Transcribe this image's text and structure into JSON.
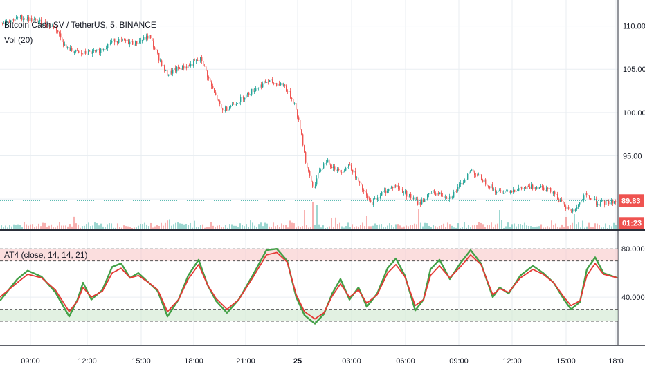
{
  "chart_data": [
    {
      "type": "candlestick",
      "title": "Bitcoin Cash SV / TetherUS, 5, BINANCE",
      "volume_label": "Vol (20)",
      "ylim": [
        86.5,
        113.0
      ],
      "y_ticks": [
        "110.00",
        "105.00",
        "100.00",
        "95.00"
      ],
      "last_price_tag": "89.83",
      "countdown_tag": "01:23",
      "last_price": 89.83,
      "close_path": [
        {
          "x": 0,
          "y": 110.4
        },
        {
          "x": 30,
          "y": 111.0
        },
        {
          "x": 55,
          "y": 110.5
        },
        {
          "x": 80,
          "y": 109.8
        },
        {
          "x": 95,
          "y": 107.4
        },
        {
          "x": 115,
          "y": 106.8
        },
        {
          "x": 140,
          "y": 107.0
        },
        {
          "x": 165,
          "y": 108.4
        },
        {
          "x": 195,
          "y": 108.0
        },
        {
          "x": 215,
          "y": 108.8
        },
        {
          "x": 225,
          "y": 107.0
        },
        {
          "x": 240,
          "y": 104.4
        },
        {
          "x": 255,
          "y": 105.0
        },
        {
          "x": 275,
          "y": 105.5
        },
        {
          "x": 290,
          "y": 106.2
        },
        {
          "x": 305,
          "y": 103.0
        },
        {
          "x": 320,
          "y": 100.2
        },
        {
          "x": 345,
          "y": 101.4
        },
        {
          "x": 365,
          "y": 102.6
        },
        {
          "x": 385,
          "y": 103.6
        },
        {
          "x": 410,
          "y": 103.2
        },
        {
          "x": 425,
          "y": 101.0
        },
        {
          "x": 435,
          "y": 97.5
        },
        {
          "x": 442,
          "y": 93.8
        },
        {
          "x": 452,
          "y": 91.2
        },
        {
          "x": 460,
          "y": 93.0
        },
        {
          "x": 470,
          "y": 94.5
        },
        {
          "x": 490,
          "y": 93.1
        },
        {
          "x": 505,
          "y": 94.0
        },
        {
          "x": 520,
          "y": 91.5
        },
        {
          "x": 535,
          "y": 89.5
        },
        {
          "x": 550,
          "y": 90.6
        },
        {
          "x": 570,
          "y": 91.6
        },
        {
          "x": 590,
          "y": 90.4
        },
        {
          "x": 605,
          "y": 89.5
        },
        {
          "x": 625,
          "y": 90.8
        },
        {
          "x": 650,
          "y": 90.2
        },
        {
          "x": 665,
          "y": 91.6
        },
        {
          "x": 680,
          "y": 93.4
        },
        {
          "x": 700,
          "y": 92.0
        },
        {
          "x": 718,
          "y": 90.8
        },
        {
          "x": 735,
          "y": 91.0
        },
        {
          "x": 760,
          "y": 91.3
        },
        {
          "x": 780,
          "y": 91.5
        },
        {
          "x": 800,
          "y": 90.8
        },
        {
          "x": 815,
          "y": 89.0
        },
        {
          "x": 828,
          "y": 88.6
        },
        {
          "x": 845,
          "y": 90.4
        },
        {
          "x": 865,
          "y": 89.5
        },
        {
          "x": 892,
          "y": 89.8
        }
      ],
      "volume_spikes": [
        {
          "x": 440,
          "h": 28
        },
        {
          "x": 452,
          "h": 40
        },
        {
          "x": 458,
          "h": 36
        },
        {
          "x": 528,
          "h": 20
        },
        {
          "x": 605,
          "h": 30
        },
        {
          "x": 720,
          "h": 28
        },
        {
          "x": 818,
          "h": 18
        },
        {
          "x": 830,
          "h": 22
        }
      ]
    },
    {
      "type": "line",
      "title": "AT4 (close, 14, 14, 21)",
      "ylim": [
        0,
        95
      ],
      "y_ticks": [
        "80.0000",
        "40.0000"
      ],
      "upper_bands": [
        70,
        80
      ],
      "lower_bands": [
        20,
        30
      ],
      "x_ticks": [
        "09:00",
        "12:00",
        "15:00",
        "18:00",
        "21:00",
        "25",
        "03:00",
        "06:00",
        "09:00",
        "12:00",
        "15:00",
        "18:0"
      ],
      "x_tick_bold": "25",
      "colors": {
        "up": "#26a69a",
        "down": "#ef5350",
        "fast": "#43a047",
        "slow": "#e53935",
        "grid": "#e9eef2"
      },
      "series": [
        {
          "color": "#43a047",
          "points": [
            {
              "x": 0,
              "y": 37
            },
            {
              "x": 25,
              "y": 55
            },
            {
              "x": 40,
              "y": 62
            },
            {
              "x": 60,
              "y": 57
            },
            {
              "x": 80,
              "y": 44
            },
            {
              "x": 100,
              "y": 24
            },
            {
              "x": 112,
              "y": 38
            },
            {
              "x": 120,
              "y": 52
            },
            {
              "x": 132,
              "y": 38
            },
            {
              "x": 148,
              "y": 46
            },
            {
              "x": 162,
              "y": 65
            },
            {
              "x": 175,
              "y": 68
            },
            {
              "x": 188,
              "y": 56
            },
            {
              "x": 200,
              "y": 60
            },
            {
              "x": 215,
              "y": 52
            },
            {
              "x": 228,
              "y": 45
            },
            {
              "x": 242,
              "y": 24
            },
            {
              "x": 258,
              "y": 38
            },
            {
              "x": 272,
              "y": 58
            },
            {
              "x": 287,
              "y": 71
            },
            {
              "x": 300,
              "y": 50
            },
            {
              "x": 312,
              "y": 37
            },
            {
              "x": 328,
              "y": 27
            },
            {
              "x": 345,
              "y": 38
            },
            {
              "x": 365,
              "y": 58
            },
            {
              "x": 385,
              "y": 79
            },
            {
              "x": 400,
              "y": 80
            },
            {
              "x": 415,
              "y": 70
            },
            {
              "x": 428,
              "y": 40
            },
            {
              "x": 440,
              "y": 25
            },
            {
              "x": 455,
              "y": 18
            },
            {
              "x": 468,
              "y": 26
            },
            {
              "x": 480,
              "y": 43
            },
            {
              "x": 492,
              "y": 55
            },
            {
              "x": 505,
              "y": 38
            },
            {
              "x": 518,
              "y": 48
            },
            {
              "x": 530,
              "y": 32
            },
            {
              "x": 545,
              "y": 43
            },
            {
              "x": 560,
              "y": 64
            },
            {
              "x": 572,
              "y": 72
            },
            {
              "x": 585,
              "y": 58
            },
            {
              "x": 600,
              "y": 29
            },
            {
              "x": 612,
              "y": 38
            },
            {
              "x": 622,
              "y": 63
            },
            {
              "x": 635,
              "y": 71
            },
            {
              "x": 650,
              "y": 55
            },
            {
              "x": 665,
              "y": 68
            },
            {
              "x": 680,
              "y": 79
            },
            {
              "x": 695,
              "y": 68
            },
            {
              "x": 712,
              "y": 40
            },
            {
              "x": 722,
              "y": 48
            },
            {
              "x": 735,
              "y": 43
            },
            {
              "x": 752,
              "y": 58
            },
            {
              "x": 770,
              "y": 66
            },
            {
              "x": 785,
              "y": 60
            },
            {
              "x": 800,
              "y": 52
            },
            {
              "x": 815,
              "y": 38
            },
            {
              "x": 825,
              "y": 30
            },
            {
              "x": 838,
              "y": 36
            },
            {
              "x": 848,
              "y": 63
            },
            {
              "x": 860,
              "y": 73
            },
            {
              "x": 872,
              "y": 60
            },
            {
              "x": 892,
              "y": 56
            }
          ]
        },
        {
          "color": "#e53935",
          "points": [
            {
              "x": 0,
              "y": 40
            },
            {
              "x": 25,
              "y": 52
            },
            {
              "x": 40,
              "y": 59
            },
            {
              "x": 60,
              "y": 56
            },
            {
              "x": 80,
              "y": 46
            },
            {
              "x": 100,
              "y": 28
            },
            {
              "x": 112,
              "y": 37
            },
            {
              "x": 120,
              "y": 48
            },
            {
              "x": 132,
              "y": 40
            },
            {
              "x": 148,
              "y": 45
            },
            {
              "x": 162,
              "y": 60
            },
            {
              "x": 175,
              "y": 64
            },
            {
              "x": 188,
              "y": 56
            },
            {
              "x": 200,
              "y": 58
            },
            {
              "x": 215,
              "y": 52
            },
            {
              "x": 228,
              "y": 46
            },
            {
              "x": 242,
              "y": 28
            },
            {
              "x": 258,
              "y": 38
            },
            {
              "x": 272,
              "y": 55
            },
            {
              "x": 287,
              "y": 67
            },
            {
              "x": 300,
              "y": 50
            },
            {
              "x": 312,
              "y": 39
            },
            {
              "x": 328,
              "y": 30
            },
            {
              "x": 345,
              "y": 38
            },
            {
              "x": 365,
              "y": 56
            },
            {
              "x": 385,
              "y": 75
            },
            {
              "x": 400,
              "y": 77
            },
            {
              "x": 415,
              "y": 69
            },
            {
              "x": 428,
              "y": 42
            },
            {
              "x": 440,
              "y": 28
            },
            {
              "x": 455,
              "y": 22
            },
            {
              "x": 468,
              "y": 27
            },
            {
              "x": 480,
              "y": 41
            },
            {
              "x": 492,
              "y": 51
            },
            {
              "x": 505,
              "y": 40
            },
            {
              "x": 518,
              "y": 46
            },
            {
              "x": 530,
              "y": 35
            },
            {
              "x": 545,
              "y": 42
            },
            {
              "x": 560,
              "y": 60
            },
            {
              "x": 572,
              "y": 67
            },
            {
              "x": 585,
              "y": 57
            },
            {
              "x": 600,
              "y": 33
            },
            {
              "x": 612,
              "y": 38
            },
            {
              "x": 622,
              "y": 58
            },
            {
              "x": 635,
              "y": 66
            },
            {
              "x": 650,
              "y": 56
            },
            {
              "x": 665,
              "y": 65
            },
            {
              "x": 680,
              "y": 75
            },
            {
              "x": 695,
              "y": 67
            },
            {
              "x": 712,
              "y": 42
            },
            {
              "x": 722,
              "y": 47
            },
            {
              "x": 735,
              "y": 44
            },
            {
              "x": 752,
              "y": 56
            },
            {
              "x": 770,
              "y": 63
            },
            {
              "x": 785,
              "y": 59
            },
            {
              "x": 800,
              "y": 52
            },
            {
              "x": 815,
              "y": 40
            },
            {
              "x": 825,
              "y": 33
            },
            {
              "x": 838,
              "y": 37
            },
            {
              "x": 848,
              "y": 58
            },
            {
              "x": 860,
              "y": 68
            },
            {
              "x": 872,
              "y": 59
            },
            {
              "x": 892,
              "y": 56
            }
          ]
        }
      ]
    }
  ]
}
